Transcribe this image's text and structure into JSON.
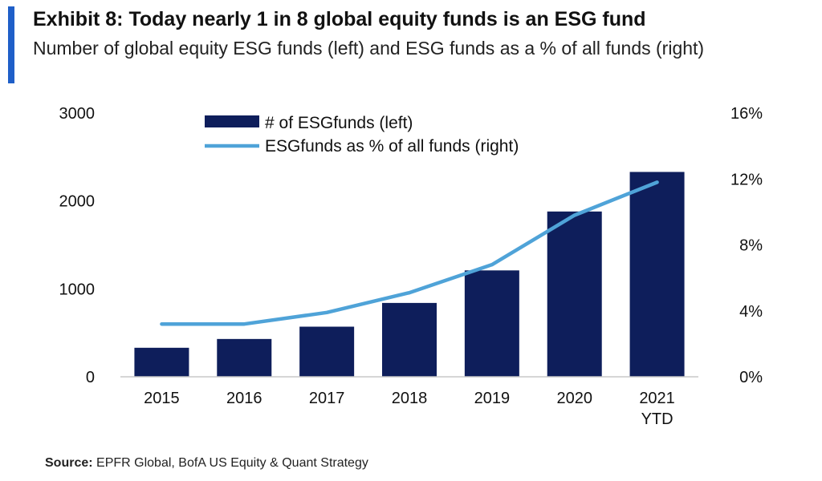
{
  "header": {
    "title": "Exhibit 8: Today nearly 1 in 8 global equity funds is an ESG fund",
    "subtitle": "Number of global equity ESG funds (left) and ESG funds as a % of all funds (right)"
  },
  "footer": {
    "source_label": "Source:",
    "source_text": " EPFR Global, BofA US Equity & Quant Strategy"
  },
  "colors": {
    "accent": "#1f5fc8",
    "bar": "#0e1e5b",
    "line": "#4fa3d8"
  },
  "chart_data": {
    "type": "bar",
    "categories": [
      "2015",
      "2016",
      "2017",
      "2018",
      "2019",
      "2020",
      "2021\nYTD"
    ],
    "series": [
      {
        "name": "# of ESGfunds (left)",
        "type": "bar",
        "axis": "left",
        "values": [
          330,
          430,
          570,
          840,
          1210,
          1880,
          2330
        ]
      },
      {
        "name": "ESGfunds as % of all funds (right)",
        "type": "line",
        "axis": "right",
        "values": [
          3.2,
          3.2,
          3.9,
          5.1,
          6.8,
          9.8,
          11.8
        ]
      }
    ],
    "yaxis_left": {
      "min": 0,
      "max": 3000,
      "ticks": [
        0,
        1000,
        2000,
        3000
      ],
      "tick_labels": [
        "0",
        "1000",
        "2000",
        "3000"
      ]
    },
    "yaxis_right": {
      "min": 0,
      "max": 16,
      "ticks": [
        0,
        4,
        8,
        12,
        16
      ],
      "tick_labels": [
        "0%",
        "4%",
        "8%",
        "12%",
        "16%"
      ]
    },
    "grid": false,
    "legend_position": "top-center"
  }
}
